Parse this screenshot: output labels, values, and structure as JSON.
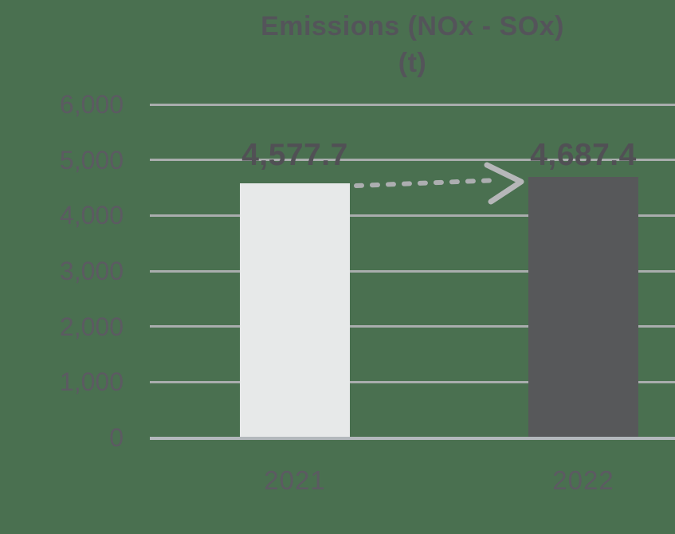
{
  "chart_data": {
    "type": "bar",
    "title": "Emissions (NOx - SOx)",
    "subtitle": "(t)",
    "categories": [
      "2021",
      "2022"
    ],
    "values": [
      4577.7,
      4687.4
    ],
    "data_labels": [
      "4,577.7",
      "4,687.4"
    ],
    "xlabel": "",
    "ylabel": "",
    "ylim": [
      0,
      6000
    ],
    "ytick_step": 1000,
    "yticks": [
      {
        "value": 6000,
        "label": "6,000"
      },
      {
        "value": 5000,
        "label": "5,000"
      },
      {
        "value": 4000,
        "label": "4,000"
      },
      {
        "value": 3000,
        "label": "3,000"
      },
      {
        "value": 2000,
        "label": "2,000"
      },
      {
        "value": 1000,
        "label": "1,000"
      },
      {
        "value": 0,
        "label": "0"
      }
    ],
    "grid": "horizontal",
    "legend_position": "none",
    "annotation": {
      "type": "dashed-trend-arrow",
      "from_category": "2021",
      "to_category": "2022",
      "direction": "up"
    }
  },
  "colors": {
    "background": "#4a7050",
    "bars": [
      "#e7e9e9",
      "#57585a"
    ],
    "gridline": "#a9adad",
    "zero_line": "#b3b8bc",
    "title_text": "#54545a",
    "data_label_text": "#515055",
    "tick_text": "#5c5a62",
    "arrow_dash": "#acaeb0",
    "arrow_head": "#b6b7b9"
  }
}
